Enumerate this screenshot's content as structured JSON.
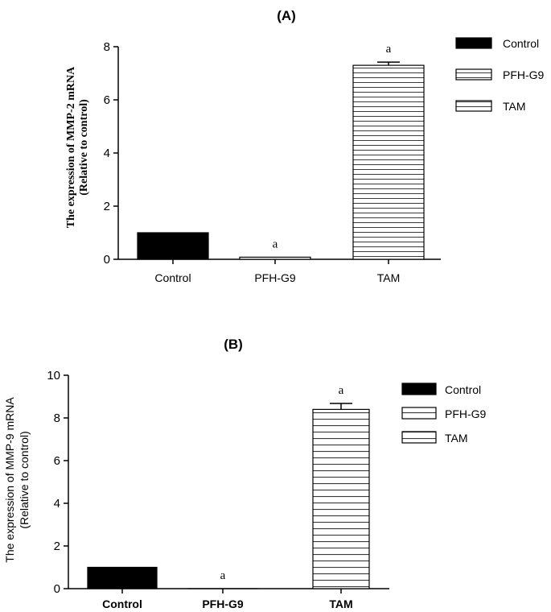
{
  "chart_data": [
    {
      "type": "bar",
      "title": "(A)",
      "xlabel": "",
      "ylabel_lines": [
        "The expression of MMP-2 mRNA",
        "(Relative to control)"
      ],
      "categories": [
        "Control",
        "PFH-G9",
        "TAM"
      ],
      "values": [
        1.0,
        0.08,
        7.3
      ],
      "errors": [
        0,
        0,
        0.12
      ],
      "sig_labels": [
        "",
        "a",
        "a"
      ],
      "ylim": [
        0,
        8
      ],
      "yticks": [
        0,
        2,
        4,
        6,
        8
      ],
      "legend": {
        "position": "top-right",
        "entries": [
          "Control",
          "PFH-G9",
          "TAM"
        ]
      },
      "patterns": [
        "solid",
        "hlines",
        "hlines"
      ]
    },
    {
      "type": "bar",
      "title": "(B)",
      "xlabel": "",
      "ylabel_lines": [
        "The expression of MMP-9 mRNA",
        "(Relative to control)"
      ],
      "categories": [
        "Control",
        "PFH-G9",
        "TAM"
      ],
      "values": [
        1.0,
        0.0,
        8.4
      ],
      "errors": [
        0,
        0,
        0.28
      ],
      "sig_labels": [
        "",
        "a",
        "a"
      ],
      "ylim": [
        0,
        10
      ],
      "yticks": [
        0,
        2,
        4,
        6,
        8,
        10
      ],
      "legend": {
        "position": "top-right",
        "entries": [
          "Control",
          "PFH-G9",
          "TAM"
        ]
      },
      "patterns": [
        "solid",
        "hlines",
        "hlines"
      ]
    }
  ]
}
